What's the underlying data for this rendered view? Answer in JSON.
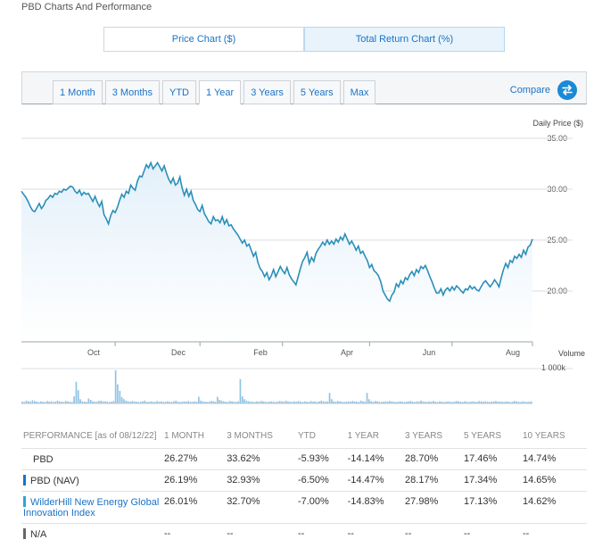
{
  "page": {
    "title": "PBD Charts And Performance"
  },
  "chart_type_tabs": [
    {
      "label": "Price Chart ($)",
      "active": false
    },
    {
      "label": "Total Return Chart (%)",
      "active": true
    }
  ],
  "range_tabs": [
    {
      "label": "1 Month",
      "active": false
    },
    {
      "label": "3 Months",
      "active": false
    },
    {
      "label": "YTD",
      "active": false
    },
    {
      "label": "1 Year",
      "active": true
    },
    {
      "label": "3 Years",
      "active": false
    },
    {
      "label": "5 Years",
      "active": false
    },
    {
      "label": "Max",
      "active": false
    }
  ],
  "compare": {
    "label": "Compare",
    "icon": "swap-arrows-icon"
  },
  "colors": {
    "line": "#2b8fb8",
    "area": "#e3f0fa",
    "volume": "#8fc3e6",
    "accent": "#1a73c7"
  },
  "chart_data": {
    "type": "area",
    "ylabel": "Daily Price ($)",
    "ylim": [
      15.5,
      35
    ],
    "yticks": [
      "35.00",
      "30.00",
      "25.00",
      "20.00"
    ],
    "ytick_values": [
      35,
      30,
      25,
      20
    ],
    "grid": true,
    "x_month_labels": [
      "Oct",
      "Dec",
      "Feb",
      "Apr",
      "Jun",
      "Aug"
    ],
    "x_month_index": [
      42,
      80,
      117,
      156,
      193,
      229
    ],
    "series": [
      {
        "values": [
          29.8,
          29.5,
          29.2,
          28.8,
          28.3,
          27.9,
          27.8,
          28.2,
          28.6,
          28.1,
          28.4,
          28.9,
          29.1,
          29.4,
          29.2,
          29.6,
          29.5,
          29.8,
          29.7,
          30.0,
          29.9,
          30.1,
          30.3,
          30.2,
          29.8,
          29.6,
          29.9,
          29.4,
          29.7,
          29.5,
          29.6,
          29.2,
          28.8,
          29.3,
          28.7,
          28.3,
          28.8,
          27.5,
          27.1,
          26.6,
          27.4,
          27.9,
          27.7,
          28.2,
          28.9,
          29.5,
          29.2,
          29.8,
          29.6,
          30.4,
          30.1,
          29.9,
          30.8,
          31.3,
          31.2,
          31.8,
          32.4,
          32.1,
          32.6,
          32.0,
          32.3,
          32.6,
          32.2,
          31.8,
          32.3,
          31.6,
          31.0,
          30.6,
          31.1,
          30.4,
          30.6,
          31.2,
          30.1,
          29.4,
          30.0,
          29.3,
          29.8,
          28.9,
          28.5,
          28.0,
          27.8,
          28.4,
          27.6,
          27.2,
          26.8,
          26.6,
          27.3,
          26.9,
          27.0,
          26.7,
          27.3,
          26.6,
          27.0,
          26.4,
          26.5,
          26.1,
          25.8,
          25.5,
          25.1,
          24.7,
          25.0,
          24.4,
          24.6,
          24.0,
          23.4,
          23.8,
          22.8,
          22.2,
          21.9,
          21.4,
          21.8,
          21.1,
          21.5,
          22.1,
          21.4,
          21.9,
          22.4,
          22.0,
          21.7,
          22.3,
          21.6,
          21.2,
          20.9,
          20.6,
          21.4,
          22.2,
          22.9,
          23.3,
          23.8,
          22.7,
          23.3,
          22.9,
          23.7,
          24.1,
          24.4,
          24.8,
          24.5,
          25.0,
          24.6,
          24.9,
          24.6,
          25.1,
          24.8,
          25.3,
          25.0,
          25.6,
          25.1,
          24.6,
          24.9,
          24.5,
          24.0,
          24.4,
          23.7,
          23.9,
          23.4,
          23.0,
          22.3,
          22.6,
          22.0,
          21.8,
          21.5,
          20.9,
          20.0,
          19.6,
          19.2,
          19.0,
          19.6,
          19.9,
          20.7,
          20.4,
          21.0,
          20.7,
          21.3,
          21.1,
          21.6,
          21.9,
          21.5,
          22.1,
          21.8,
          22.4,
          22.2,
          22.5,
          22.0,
          21.4,
          20.9,
          20.3,
          19.8,
          19.8,
          20.2,
          19.6,
          20.1,
          20.3,
          20.0,
          20.4,
          20.1,
          20.5,
          20.3,
          20.0,
          19.8,
          20.2,
          20.1,
          20.5,
          20.2,
          20.4,
          20.1,
          20.0,
          20.4,
          20.8,
          21.0,
          20.7,
          20.4,
          20.7,
          21.1,
          20.8,
          20.4,
          21.3,
          22.1,
          22.7,
          22.3,
          23.0,
          22.8,
          23.4,
          23.2,
          23.6,
          23.3,
          24.0,
          23.6,
          24.3,
          24.5,
          25.1
        ]
      }
    ]
  },
  "x_axis": {
    "labels": [
      "Oct",
      "Dec",
      "Feb",
      "Apr",
      "Jun",
      "Aug"
    ]
  },
  "volume_chart": {
    "label": "Volume",
    "tick": "1 000k",
    "values": [
      0.05,
      0.04,
      0.08,
      0.06,
      0.05,
      0.09,
      0.07,
      0.05,
      0.04,
      0.06,
      0.05,
      0.04,
      0.07,
      0.05,
      0.06,
      0.04,
      0.05,
      0.08,
      0.06,
      0.05,
      0.04,
      0.07,
      0.06,
      0.05,
      0.04,
      0.2,
      0.62,
      0.38,
      0.12,
      0.06,
      0.05,
      0.04,
      0.14,
      0.1,
      0.06,
      0.05,
      0.05,
      0.07,
      0.08,
      0.06,
      0.06,
      0.05,
      0.04,
      0.05,
      0.07,
      0.95,
      0.55,
      0.36,
      0.18,
      0.12,
      0.08,
      0.06,
      0.05,
      0.07,
      0.06,
      0.05,
      0.04,
      0.05,
      0.06,
      0.08,
      0.05,
      0.04,
      0.06,
      0.05,
      0.04,
      0.07,
      0.05,
      0.06,
      0.04,
      0.05,
      0.06,
      0.05,
      0.04,
      0.06,
      0.08,
      0.05,
      0.04,
      0.05,
      0.06,
      0.05,
      0.07,
      0.05,
      0.04,
      0.06,
      0.05,
      0.19,
      0.08,
      0.06,
      0.05,
      0.04,
      0.05,
      0.07,
      0.06,
      0.05,
      0.19,
      0.1,
      0.08,
      0.06,
      0.05,
      0.04,
      0.07,
      0.06,
      0.05,
      0.04,
      0.06,
      0.7,
      0.2,
      0.12,
      0.08,
      0.06,
      0.05,
      0.05,
      0.04,
      0.06,
      0.05,
      0.07,
      0.06,
      0.05,
      0.04,
      0.05,
      0.06,
      0.05,
      0.04,
      0.05,
      0.07,
      0.06,
      0.05,
      0.08,
      0.06,
      0.05,
      0.04,
      0.06,
      0.05,
      0.07,
      0.05,
      0.04,
      0.06,
      0.05,
      0.04,
      0.07,
      0.05,
      0.06,
      0.04,
      0.06,
      0.08,
      0.06,
      0.05,
      0.06,
      0.3,
      0.12,
      0.06,
      0.05,
      0.07,
      0.06,
      0.05,
      0.04,
      0.05,
      0.06,
      0.05,
      0.07,
      0.06,
      0.05,
      0.04,
      0.08,
      0.06,
      0.05,
      0.3,
      0.12,
      0.06,
      0.05,
      0.07,
      0.06,
      0.05,
      0.04,
      0.05,
      0.06,
      0.05,
      0.07,
      0.06,
      0.05,
      0.04,
      0.05,
      0.06,
      0.05,
      0.04,
      0.05,
      0.06,
      0.07,
      0.05,
      0.04,
      0.06,
      0.05,
      0.08,
      0.06,
      0.05,
      0.04,
      0.06,
      0.05,
      0.07,
      0.05,
      0.04,
      0.06,
      0.05,
      0.04,
      0.05,
      0.06,
      0.05,
      0.04,
      0.05,
      0.07,
      0.06,
      0.05,
      0.04,
      0.06,
      0.05,
      0.04,
      0.05,
      0.06,
      0.05,
      0.04,
      0.07,
      0.06,
      0.05,
      0.06,
      0.05,
      0.04,
      0.05,
      0.06,
      0.07,
      0.05,
      0.06,
      0.05,
      0.04,
      0.06,
      0.05,
      0.04,
      0.05,
      0.07,
      0.06,
      0.05,
      0.04,
      0.06,
      0.05,
      0.04,
      0.05,
      0.06
    ]
  },
  "performance": {
    "header_label": "PERFORMANCE [as of 08/12/22]",
    "columns": [
      "1 MONTH",
      "3 MONTHS",
      "YTD",
      "1 YEAR",
      "3 YEARS",
      "5 YEARS",
      "10 YEARS"
    ],
    "rows": [
      {
        "name": "PBD",
        "marker": "",
        "values": [
          "26.27%",
          "33.62%",
          "-5.93%",
          "-14.14%",
          "28.70%",
          "17.46%",
          "14.74%"
        ]
      },
      {
        "name": "PBD (NAV)",
        "marker": "#1a73c7",
        "values": [
          "26.19%",
          "32.93%",
          "-6.50%",
          "-14.47%",
          "28.17%",
          "17.34%",
          "14.65%"
        ]
      },
      {
        "name": "WilderHill New Energy Global Innovation Index",
        "marker": "#27a8d8",
        "values": [
          "26.01%",
          "32.70%",
          "-7.00%",
          "-14.83%",
          "27.98%",
          "17.13%",
          "14.62%"
        ]
      },
      {
        "name": "N/A",
        "marker": "#666666",
        "values": [
          "--",
          "--",
          "--",
          "--",
          "--",
          "--",
          "--"
        ]
      }
    ]
  }
}
